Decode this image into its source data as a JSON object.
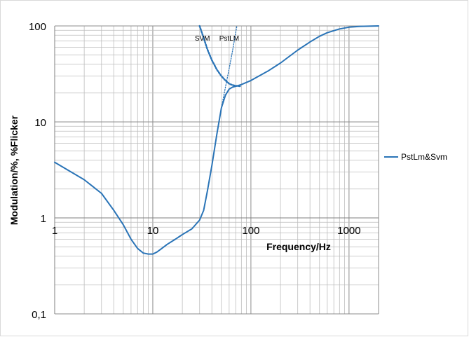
{
  "chart_data": {
    "type": "line",
    "title": "",
    "xlabel": "Frequency/Hz",
    "ylabel": "Modulation/%,  %Flicker",
    "xscale": "log",
    "yscale": "log",
    "xlim": [
      1,
      2000
    ],
    "ylim": [
      0.1,
      100
    ],
    "grid": true,
    "legend_position": "right",
    "x_ticks": [
      {
        "value": 1,
        "label": "1"
      },
      {
        "value": 10,
        "label": "10"
      },
      {
        "value": 100,
        "label": "100"
      },
      {
        "value": 1000,
        "label": "1000"
      }
    ],
    "y_ticks": [
      {
        "value": 0.1,
        "label": "0,1"
      },
      {
        "value": 1,
        "label": "1"
      },
      {
        "value": 10,
        "label": "10"
      },
      {
        "value": 100,
        "label": "100"
      }
    ],
    "series": [
      {
        "name": "PstLm&Svm",
        "color": "#2a74b7",
        "style": "solid",
        "x": [
          1,
          2,
          3,
          4,
          5,
          6,
          7,
          8,
          9,
          10,
          11,
          12,
          14,
          17,
          20,
          25,
          30,
          33,
          36,
          40,
          45,
          50,
          55,
          60,
          65,
          70,
          80,
          100,
          150,
          200,
          300,
          400,
          500,
          600,
          800,
          1000,
          1300,
          2000
        ],
        "y": [
          3.8,
          2.5,
          1.8,
          1.2,
          0.85,
          0.6,
          0.48,
          0.43,
          0.42,
          0.42,
          0.44,
          0.47,
          0.53,
          0.6,
          0.67,
          0.77,
          0.95,
          1.2,
          1.9,
          3.5,
          7.5,
          14,
          19,
          22,
          23,
          23.5,
          24.5,
          27,
          34,
          41,
          56,
          68,
          78,
          85,
          93,
          97,
          99,
          100
        ]
      },
      {
        "name": "SVM",
        "color": "#2a74b7",
        "style": "dotted",
        "x": [
          30,
          33,
          36,
          40,
          45,
          50,
          55,
          60,
          65,
          70,
          80
        ],
        "y": [
          100,
          75,
          57,
          44,
          35,
          30,
          27,
          25,
          24.2,
          23.8,
          23.5
        ]
      },
      {
        "name": "PstLM",
        "color": "#2a74b7",
        "style": "dotted",
        "x": [
          45,
          50,
          55,
          60,
          65,
          70,
          72
        ],
        "y": [
          7.5,
          14,
          23,
          36,
          55,
          85,
          100
        ]
      }
    ],
    "annotations": [
      {
        "text": "SVM",
        "x": 32,
        "y": 70
      },
      {
        "text": "PstLM",
        "x": 60,
        "y": 70
      }
    ]
  }
}
